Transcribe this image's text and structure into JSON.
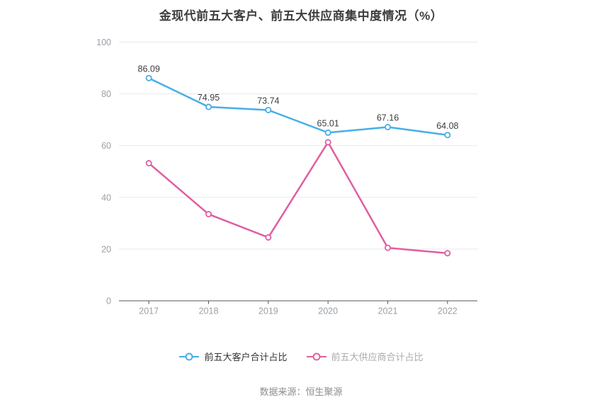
{
  "title": "金现代前五大客户、前五大供应商集中度情况（%）",
  "footer": "数据来源：恒生聚源",
  "chart_data": {
    "type": "line",
    "categories": [
      "2017",
      "2018",
      "2019",
      "2020",
      "2021",
      "2022"
    ],
    "series": [
      {
        "name": "前五大客户合计占比",
        "color": "#47aee8",
        "values": [
          86.09,
          74.95,
          73.74,
          65.01,
          67.16,
          64.08
        ],
        "show_labels": true
      },
      {
        "name": "前五大供应商合计占比",
        "color": "#e05fa0",
        "values": [
          53.2,
          33.5,
          24.5,
          61.3,
          20.5,
          18.4
        ],
        "show_labels": false
      }
    ],
    "ylim": [
      0,
      100
    ],
    "yticks": [
      0,
      20,
      40,
      60,
      80,
      100
    ],
    "grid": true,
    "legend_position": "bottom",
    "label_color": "#3d3d3d",
    "axis_line_color": "#555555",
    "grid_color": "#e4e9f1",
    "tick_label_color": "#9aa0a6"
  },
  "legend": {
    "items": [
      {
        "label": "前五大客户合计占比",
        "color": "#47aee8"
      },
      {
        "label": "前五大供应商合计占比",
        "color": "#e05fa0"
      }
    ]
  }
}
